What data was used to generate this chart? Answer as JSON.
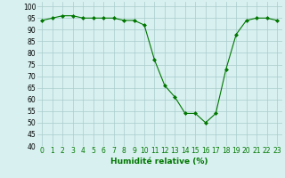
{
  "x": [
    0,
    1,
    2,
    3,
    4,
    5,
    6,
    7,
    8,
    9,
    10,
    11,
    12,
    13,
    14,
    15,
    16,
    17,
    18,
    19,
    20,
    21,
    22,
    23
  ],
  "y": [
    94,
    95,
    96,
    96,
    95,
    95,
    95,
    95,
    94,
    94,
    92,
    77,
    66,
    61,
    54,
    54,
    50,
    54,
    73,
    88,
    94,
    95,
    95,
    94
  ],
  "line_color": "#007700",
  "marker": "D",
  "marker_size": 2,
  "xlabel": "Humidité relative (%)",
  "xlabel_color": "#007700",
  "ylim": [
    40,
    102
  ],
  "yticks": [
    40,
    45,
    50,
    55,
    60,
    65,
    70,
    75,
    80,
    85,
    90,
    95,
    100
  ],
  "xticks": [
    0,
    1,
    2,
    3,
    4,
    5,
    6,
    7,
    8,
    9,
    10,
    11,
    12,
    13,
    14,
    15,
    16,
    17,
    18,
    19,
    20,
    21,
    22,
    23
  ],
  "background_color": "#d8f0f0",
  "grid_color": "#aacccc",
  "tick_fontsize": 5.5,
  "xlabel_fontsize": 6.5
}
